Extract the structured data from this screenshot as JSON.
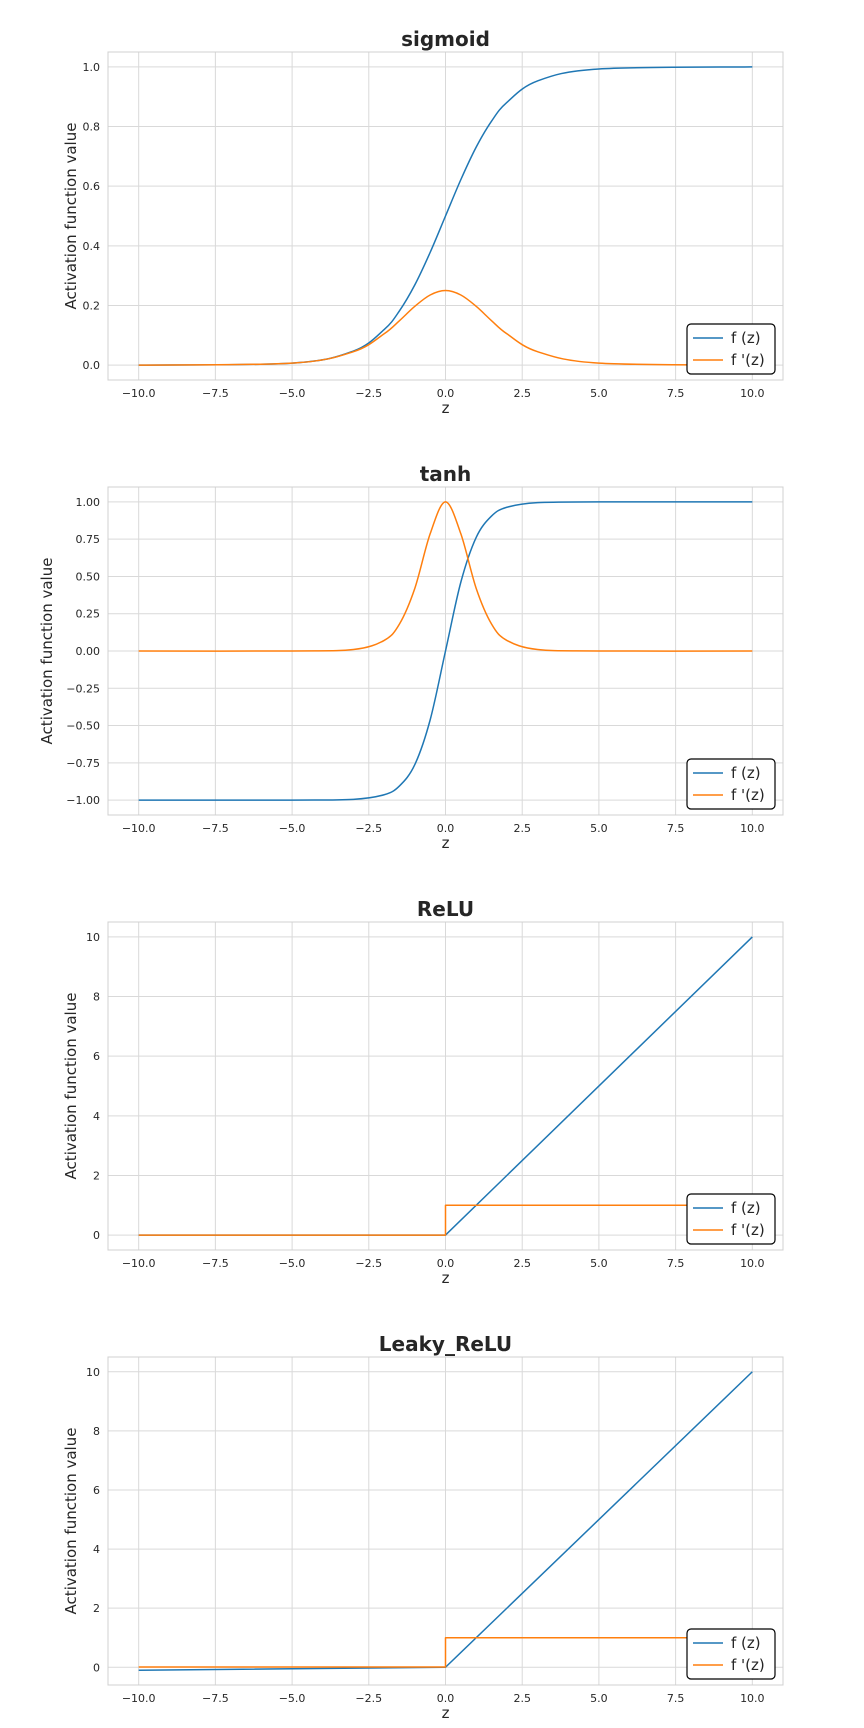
{
  "chart_data": [
    {
      "type": "line",
      "title": "sigmoid",
      "xlabel": "z",
      "ylabel": "Activation function value",
      "xlim": [
        -11,
        11
      ],
      "ylim": [
        -0.05,
        1.05
      ],
      "xticks": [
        -10.0,
        -7.5,
        -5.0,
        -2.5,
        0.0,
        2.5,
        5.0,
        7.5,
        10.0
      ],
      "xtick_labels": [
        "−10.0",
        "−7.5",
        "−5.0",
        "−2.5",
        "0.0",
        "2.5",
        "5.0",
        "7.5",
        "10.0"
      ],
      "yticks": [
        0.0,
        0.2,
        0.4,
        0.6,
        0.8,
        1.0
      ],
      "ytick_labels": [
        "0.0",
        "0.2",
        "0.4",
        "0.6",
        "0.8",
        "1.0"
      ],
      "grid": true,
      "legend": "lower-right",
      "x": [
        -10,
        -5,
        -3,
        -2,
        -1.5,
        -1,
        -0.5,
        0,
        0.5,
        1,
        1.5,
        2,
        3,
        5,
        10
      ],
      "series": [
        {
          "name": "f (z)",
          "color": "#1f77b4",
          "values": [
            0.0,
            0.0067,
            0.047,
            0.119,
            0.182,
            0.269,
            0.378,
            0.5,
            0.622,
            0.731,
            0.818,
            0.881,
            0.953,
            0.993,
            1.0
          ]
        },
        {
          "name": "f '(z)",
          "color": "#ff7f0e",
          "values": [
            0.0,
            0.0066,
            0.045,
            0.105,
            0.149,
            0.197,
            0.235,
            0.25,
            0.235,
            0.197,
            0.149,
            0.105,
            0.045,
            0.0066,
            0.0
          ]
        }
      ]
    },
    {
      "type": "line",
      "title": "tanh",
      "xlabel": "z",
      "ylabel": "Activation function value",
      "xlim": [
        -11,
        11
      ],
      "ylim": [
        -1.1,
        1.1
      ],
      "xticks": [
        -10.0,
        -7.5,
        -5.0,
        -2.5,
        0.0,
        2.5,
        5.0,
        7.5,
        10.0
      ],
      "xtick_labels": [
        "−10.0",
        "−7.5",
        "−5.0",
        "−2.5",
        "0.0",
        "2.5",
        "5.0",
        "7.5",
        "10.0"
      ],
      "yticks": [
        -1.0,
        -0.75,
        -0.5,
        -0.25,
        0.0,
        0.25,
        0.5,
        0.75,
        1.0
      ],
      "ytick_labels": [
        "−1.00",
        "−0.75",
        "−0.50",
        "−0.25",
        "0.00",
        "0.25",
        "0.50",
        "0.75",
        "1.00"
      ],
      "grid": true,
      "legend": "lower-right",
      "x": [
        -10,
        -5,
        -3,
        -2,
        -1.5,
        -1,
        -0.5,
        0,
        0.5,
        1,
        1.5,
        2,
        3,
        5,
        10
      ],
      "series": [
        {
          "name": "f (z)",
          "color": "#1f77b4",
          "values": [
            -1.0,
            -1.0,
            -0.995,
            -0.964,
            -0.905,
            -0.762,
            -0.462,
            0.0,
            0.462,
            0.762,
            0.905,
            0.964,
            0.995,
            1.0,
            1.0
          ]
        },
        {
          "name": "f '(z)",
          "color": "#ff7f0e",
          "values": [
            0.0,
            0.0002,
            0.01,
            0.071,
            0.181,
            0.42,
            0.786,
            1.0,
            0.786,
            0.42,
            0.181,
            0.071,
            0.01,
            0.0002,
            0.0
          ]
        }
      ]
    },
    {
      "type": "line",
      "title": "ReLU",
      "xlabel": "z",
      "ylabel": "Activation function value",
      "xlim": [
        -11,
        11
      ],
      "ylim": [
        -0.5,
        10.5
      ],
      "xticks": [
        -10.0,
        -7.5,
        -5.0,
        -2.5,
        0.0,
        2.5,
        5.0,
        7.5,
        10.0
      ],
      "xtick_labels": [
        "−10.0",
        "−7.5",
        "−5.0",
        "−2.5",
        "0.0",
        "2.5",
        "5.0",
        "7.5",
        "10.0"
      ],
      "yticks": [
        0,
        2,
        4,
        6,
        8,
        10
      ],
      "ytick_labels": [
        "0",
        "2",
        "4",
        "6",
        "8",
        "10"
      ],
      "grid": true,
      "legend": "lower-right",
      "series": [
        {
          "name": "f (z)",
          "color": "#1f77b4",
          "x": [
            -10,
            0,
            10
          ],
          "values": [
            0,
            0,
            10
          ]
        },
        {
          "name": "f '(z)",
          "color": "#ff7f0e",
          "x": [
            -10,
            0,
            0,
            10
          ],
          "values": [
            0,
            0,
            1,
            1
          ]
        }
      ]
    },
    {
      "type": "line",
      "title": "Leaky_ReLU",
      "xlabel": "z",
      "ylabel": "Activation function value",
      "xlim": [
        -11,
        11
      ],
      "ylim": [
        -0.6,
        10.5
      ],
      "xticks": [
        -10.0,
        -7.5,
        -5.0,
        -2.5,
        0.0,
        2.5,
        5.0,
        7.5,
        10.0
      ],
      "xtick_labels": [
        "−10.0",
        "−7.5",
        "−5.0",
        "−2.5",
        "0.0",
        "2.5",
        "5.0",
        "7.5",
        "10.0"
      ],
      "yticks": [
        0,
        2,
        4,
        6,
        8,
        10
      ],
      "ytick_labels": [
        "0",
        "2",
        "4",
        "6",
        "8",
        "10"
      ],
      "grid": true,
      "legend": "lower-right",
      "series": [
        {
          "name": "f (z)",
          "color": "#1f77b4",
          "x": [
            -10,
            0,
            10
          ],
          "values": [
            -0.1,
            0,
            10
          ]
        },
        {
          "name": "f '(z)",
          "color": "#ff7f0e",
          "x": [
            -10,
            0,
            0,
            10
          ],
          "values": [
            0.01,
            0.01,
            1,
            1
          ]
        }
      ]
    }
  ]
}
